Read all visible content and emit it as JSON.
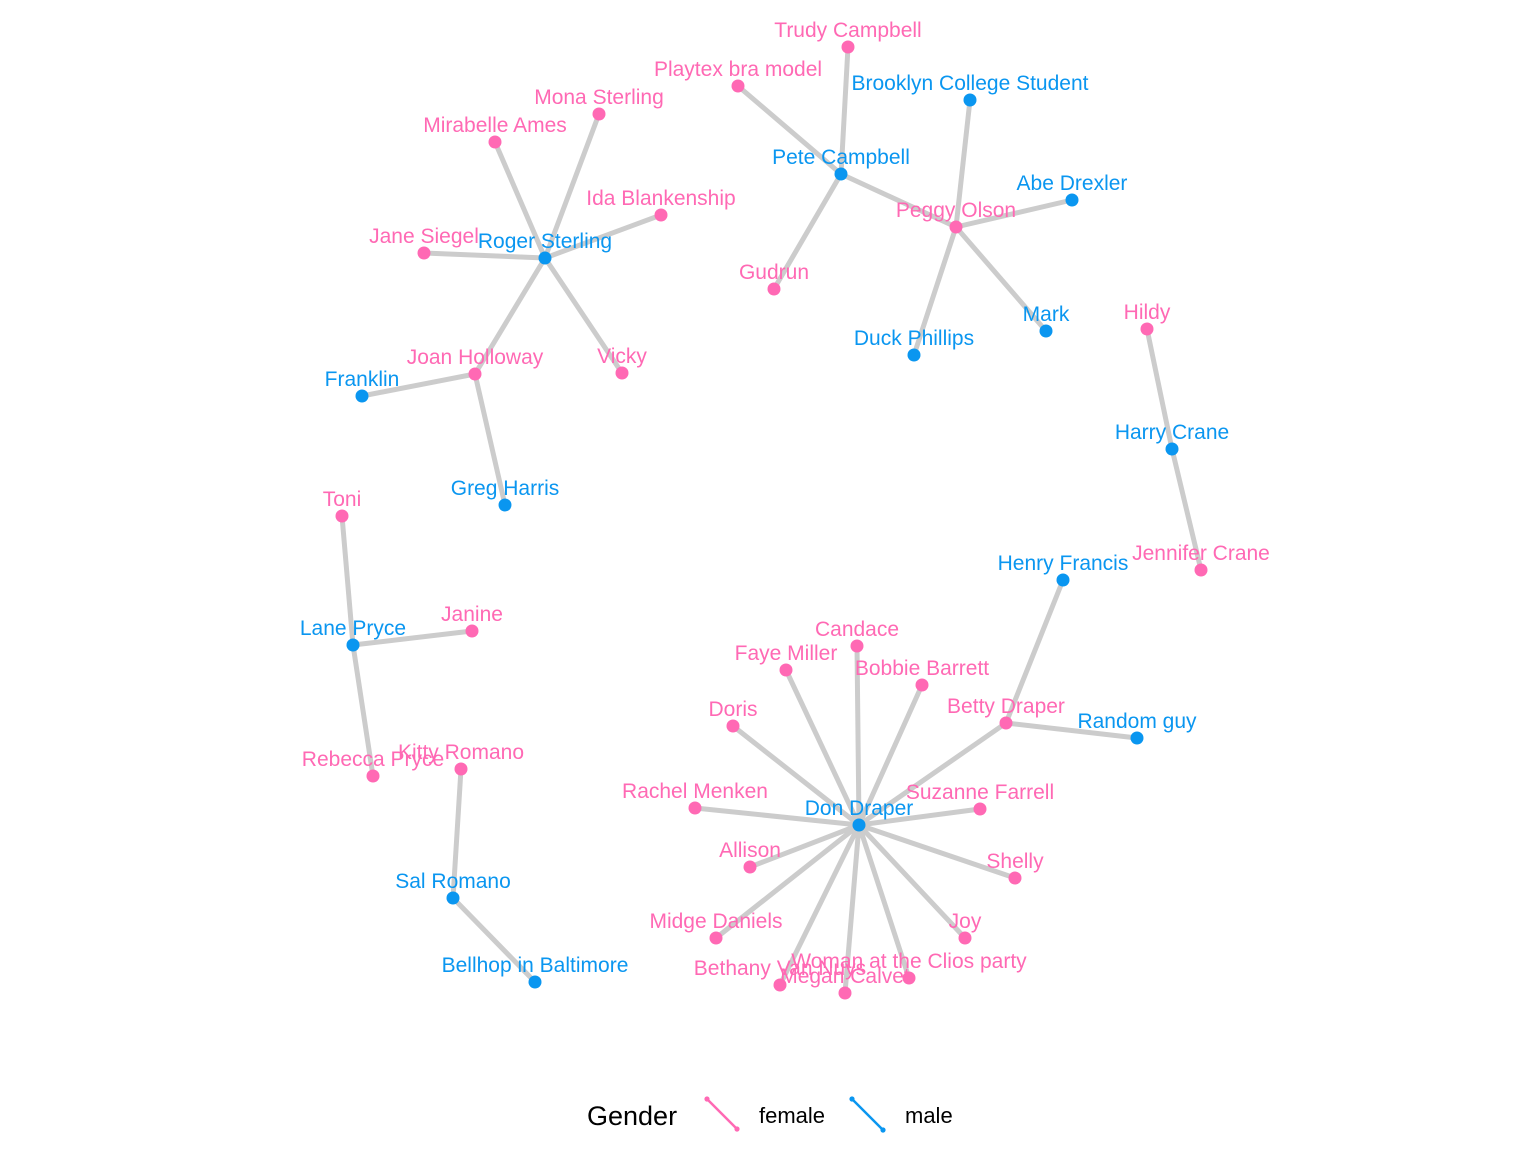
{
  "colors": {
    "female": "#ff69b4",
    "male": "#0a96f0",
    "edge": "#cccccc"
  },
  "legend": {
    "title": "Gender",
    "items": [
      {
        "key": "female",
        "label": "female"
      },
      {
        "key": "male",
        "label": "male"
      }
    ]
  },
  "nodes": [
    {
      "id": "Roger Sterling",
      "gender": "male"
    },
    {
      "id": "Mona Sterling",
      "gender": "female"
    },
    {
      "id": "Mirabelle Ames",
      "gender": "female"
    },
    {
      "id": "Ida Blankenship",
      "gender": "female"
    },
    {
      "id": "Jane Siegel",
      "gender": "female"
    },
    {
      "id": "Joan Holloway",
      "gender": "female"
    },
    {
      "id": "Vicky",
      "gender": "female"
    },
    {
      "id": "Franklin",
      "gender": "male"
    },
    {
      "id": "Greg Harris",
      "gender": "male"
    },
    {
      "id": "Pete Campbell",
      "gender": "male"
    },
    {
      "id": "Trudy Campbell",
      "gender": "female"
    },
    {
      "id": "Playtex bra model",
      "gender": "female"
    },
    {
      "id": "Gudrun",
      "gender": "female"
    },
    {
      "id": "Peggy Olson",
      "gender": "female"
    },
    {
      "id": "Brooklyn College Student",
      "gender": "male"
    },
    {
      "id": "Abe Drexler",
      "gender": "male"
    },
    {
      "id": "Mark",
      "gender": "male"
    },
    {
      "id": "Duck Phillips",
      "gender": "male"
    },
    {
      "id": "Hildy",
      "gender": "female"
    },
    {
      "id": "Harry Crane",
      "gender": "male"
    },
    {
      "id": "Jennifer Crane",
      "gender": "female"
    },
    {
      "id": "Toni",
      "gender": "female"
    },
    {
      "id": "Lane Pryce",
      "gender": "male"
    },
    {
      "id": "Janine",
      "gender": "female"
    },
    {
      "id": "Rebecca Pryce",
      "gender": "female"
    },
    {
      "id": "Kitty Romano",
      "gender": "female"
    },
    {
      "id": "Sal Romano",
      "gender": "male"
    },
    {
      "id": "Bellhop in Baltimore",
      "gender": "male"
    },
    {
      "id": "Don Draper",
      "gender": "male"
    },
    {
      "id": "Henry Francis",
      "gender": "male"
    },
    {
      "id": "Betty Draper",
      "gender": "female"
    },
    {
      "id": "Random guy",
      "gender": "male"
    },
    {
      "id": "Candace",
      "gender": "female"
    },
    {
      "id": "Faye Miller",
      "gender": "female"
    },
    {
      "id": "Bobbie Barrett",
      "gender": "female"
    },
    {
      "id": "Doris",
      "gender": "female"
    },
    {
      "id": "Rachel Menken",
      "gender": "female"
    },
    {
      "id": "Suzanne Farrell",
      "gender": "female"
    },
    {
      "id": "Allison",
      "gender": "female"
    },
    {
      "id": "Shelly",
      "gender": "female"
    },
    {
      "id": "Midge Daniels",
      "gender": "female"
    },
    {
      "id": "Joy",
      "gender": "female"
    },
    {
      "id": "Bethany Van Nuys",
      "gender": "female"
    },
    {
      "id": "Megan Calvet",
      "gender": "female"
    },
    {
      "id": "Woman at the Clios party",
      "gender": "female"
    }
  ],
  "edges": [
    [
      "Roger Sterling",
      "Mona Sterling"
    ],
    [
      "Roger Sterling",
      "Mirabelle Ames"
    ],
    [
      "Roger Sterling",
      "Ida Blankenship"
    ],
    [
      "Roger Sterling",
      "Jane Siegel"
    ],
    [
      "Roger Sterling",
      "Joan Holloway"
    ],
    [
      "Roger Sterling",
      "Vicky"
    ],
    [
      "Joan Holloway",
      "Franklin"
    ],
    [
      "Joan Holloway",
      "Greg Harris"
    ],
    [
      "Pete Campbell",
      "Trudy Campbell"
    ],
    [
      "Pete Campbell",
      "Playtex bra model"
    ],
    [
      "Pete Campbell",
      "Gudrun"
    ],
    [
      "Pete Campbell",
      "Peggy Olson"
    ],
    [
      "Peggy Olson",
      "Brooklyn College Student"
    ],
    [
      "Peggy Olson",
      "Abe Drexler"
    ],
    [
      "Peggy Olson",
      "Mark"
    ],
    [
      "Peggy Olson",
      "Duck Phillips"
    ],
    [
      "Harry Crane",
      "Hildy"
    ],
    [
      "Harry Crane",
      "Jennifer Crane"
    ],
    [
      "Lane Pryce",
      "Toni"
    ],
    [
      "Lane Pryce",
      "Janine"
    ],
    [
      "Lane Pryce",
      "Rebecca Pryce"
    ],
    [
      "Sal Romano",
      "Kitty Romano"
    ],
    [
      "Sal Romano",
      "Bellhop in Baltimore"
    ],
    [
      "Don Draper",
      "Betty Draper"
    ],
    [
      "Betty Draper",
      "Henry Francis"
    ],
    [
      "Betty Draper",
      "Random guy"
    ],
    [
      "Don Draper",
      "Candace"
    ],
    [
      "Don Draper",
      "Faye Miller"
    ],
    [
      "Don Draper",
      "Bobbie Barrett"
    ],
    [
      "Don Draper",
      "Doris"
    ],
    [
      "Don Draper",
      "Rachel Menken"
    ],
    [
      "Don Draper",
      "Suzanne Farrell"
    ],
    [
      "Don Draper",
      "Allison"
    ],
    [
      "Don Draper",
      "Shelly"
    ],
    [
      "Don Draper",
      "Midge Daniels"
    ],
    [
      "Don Draper",
      "Joy"
    ],
    [
      "Don Draper",
      "Bethany Van Nuys"
    ],
    [
      "Don Draper",
      "Megan Calvet"
    ],
    [
      "Don Draper",
      "Woman at the Clios party"
    ]
  ]
}
